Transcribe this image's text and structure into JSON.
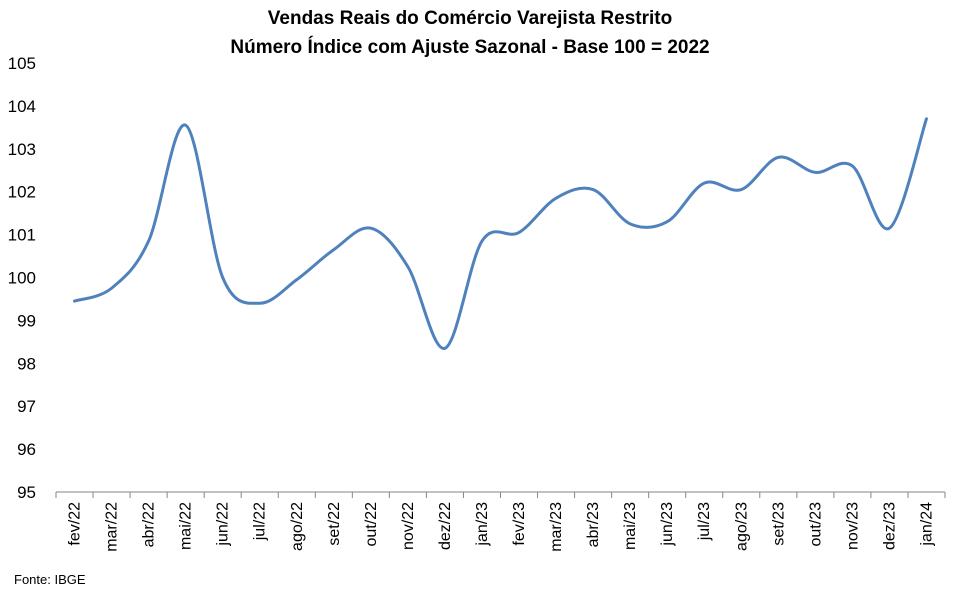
{
  "chart_data": {
    "type": "line",
    "title": "Vendas Reais do Comércio Varejista Restrito",
    "subtitle": "Número Índice com Ajuste Sazonal - Base 100 = 2022",
    "xlabel": "",
    "ylabel": "",
    "ylim": [
      95,
      105
    ],
    "yticks": [
      "95",
      "96",
      "97",
      "98",
      "99",
      "100",
      "101",
      "102",
      "103",
      "104",
      "105"
    ],
    "grid": false,
    "categories": [
      "fev/22",
      "mar/22",
      "abr/22",
      "mai/22",
      "jun/22",
      "jul/22",
      "ago/22",
      "set/22",
      "out/22",
      "nov/22",
      "dez/22",
      "jan/23",
      "fev/23",
      "mar/23",
      "abr/23",
      "mai/23",
      "jun/23",
      "jul/23",
      "ago/23",
      "set/23",
      "out/23",
      "nov/23",
      "dez/23",
      "jan/24"
    ],
    "series": [
      {
        "name": "Vendas Reais",
        "color": "#4F81BD",
        "values": [
          99.45,
          99.75,
          100.85,
          103.55,
          100.0,
          99.4,
          99.95,
          100.65,
          101.15,
          100.25,
          98.35,
          100.85,
          101.05,
          101.85,
          102.05,
          101.25,
          101.3,
          102.2,
          102.05,
          102.8,
          102.45,
          102.6,
          101.15,
          103.7
        ]
      }
    ],
    "source": "Fonte: IBGE"
  }
}
